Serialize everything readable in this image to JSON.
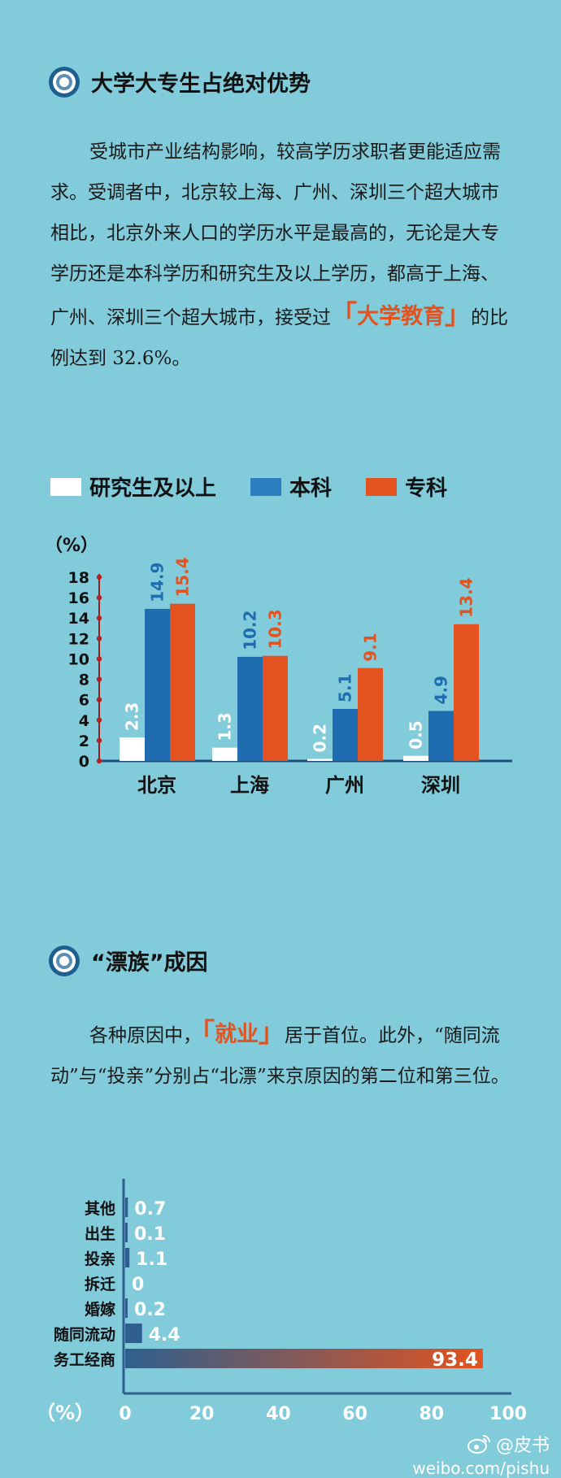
{
  "section1": {
    "title": "大学大专生占绝对优势",
    "para_before": "受城市产业结构影响，较高学历求职者更能适应需求。受调者中，北京较上海、广州、深圳三个超大城市相比，北京外来人口的学历水平是最高的，无论是大专学历还是本科学历和研究生及以上学历，都高于上海、广州、深圳三个超大城市，接受过",
    "highlight": "大学教育",
    "para_after": "的比例达到 32.6%。",
    "bracket_open": "「",
    "bracket_close": "」"
  },
  "section2": {
    "title": "“漂族”成因",
    "para_before": "各种原因中，",
    "highlight": "就业",
    "para_after": "居于首位。此外，“随同流动”与“投亲”分别占“北漂”来京原因的第二位和第三位。",
    "bracket_open": "「",
    "bracket_close": "」"
  },
  "chart_data": [
    {
      "type": "bar",
      "unit_label": "（%）",
      "categories": [
        "北京",
        "上海",
        "广州",
        "深圳"
      ],
      "series": [
        {
          "name": "研究生及以上",
          "color": "#ffffff",
          "label_color": "#ffffff",
          "values": [
            2.3,
            1.3,
            0.2,
            0.5
          ]
        },
        {
          "name": "本科",
          "color": "#1f6db0",
          "label_color": "#1f6db0",
          "values": [
            14.9,
            10.2,
            5.1,
            4.9
          ]
        },
        {
          "name": "专科",
          "color": "#e2531f",
          "label_color": "#e2531f",
          "values": [
            15.4,
            10.3,
            9.1,
            13.4
          ]
        }
      ],
      "ylim": [
        0,
        18
      ],
      "yticks": [
        "18",
        "16",
        "14",
        "12",
        "10",
        "8",
        "6",
        "4",
        "2",
        "0"
      ],
      "legend_position": "top"
    },
    {
      "type": "bar",
      "orientation": "horizontal",
      "unit_label": "（%）",
      "categories": [
        "其他",
        "出生",
        "投亲",
        "拆迁",
        "婚嫁",
        "随同流动",
        "务工经商"
      ],
      "values": [
        0.7,
        0.1,
        1.1,
        0,
        0.2,
        4.4,
        93.4
      ],
      "value_labels": [
        "0.7",
        "0.1",
        "1.1",
        "0",
        "0.2",
        "4.4",
        "93.4"
      ],
      "xlim": [
        0,
        100
      ],
      "xticks": [
        "0",
        "20",
        "40",
        "60",
        "80",
        "100"
      ],
      "colors": {
        "bar_start": "#2e5f8e",
        "bar_end": "#e2531f",
        "axis": "#2e5f8e"
      }
    }
  ],
  "watermark": {
    "handle": "@皮书",
    "site": "weibo.com/pishu"
  }
}
